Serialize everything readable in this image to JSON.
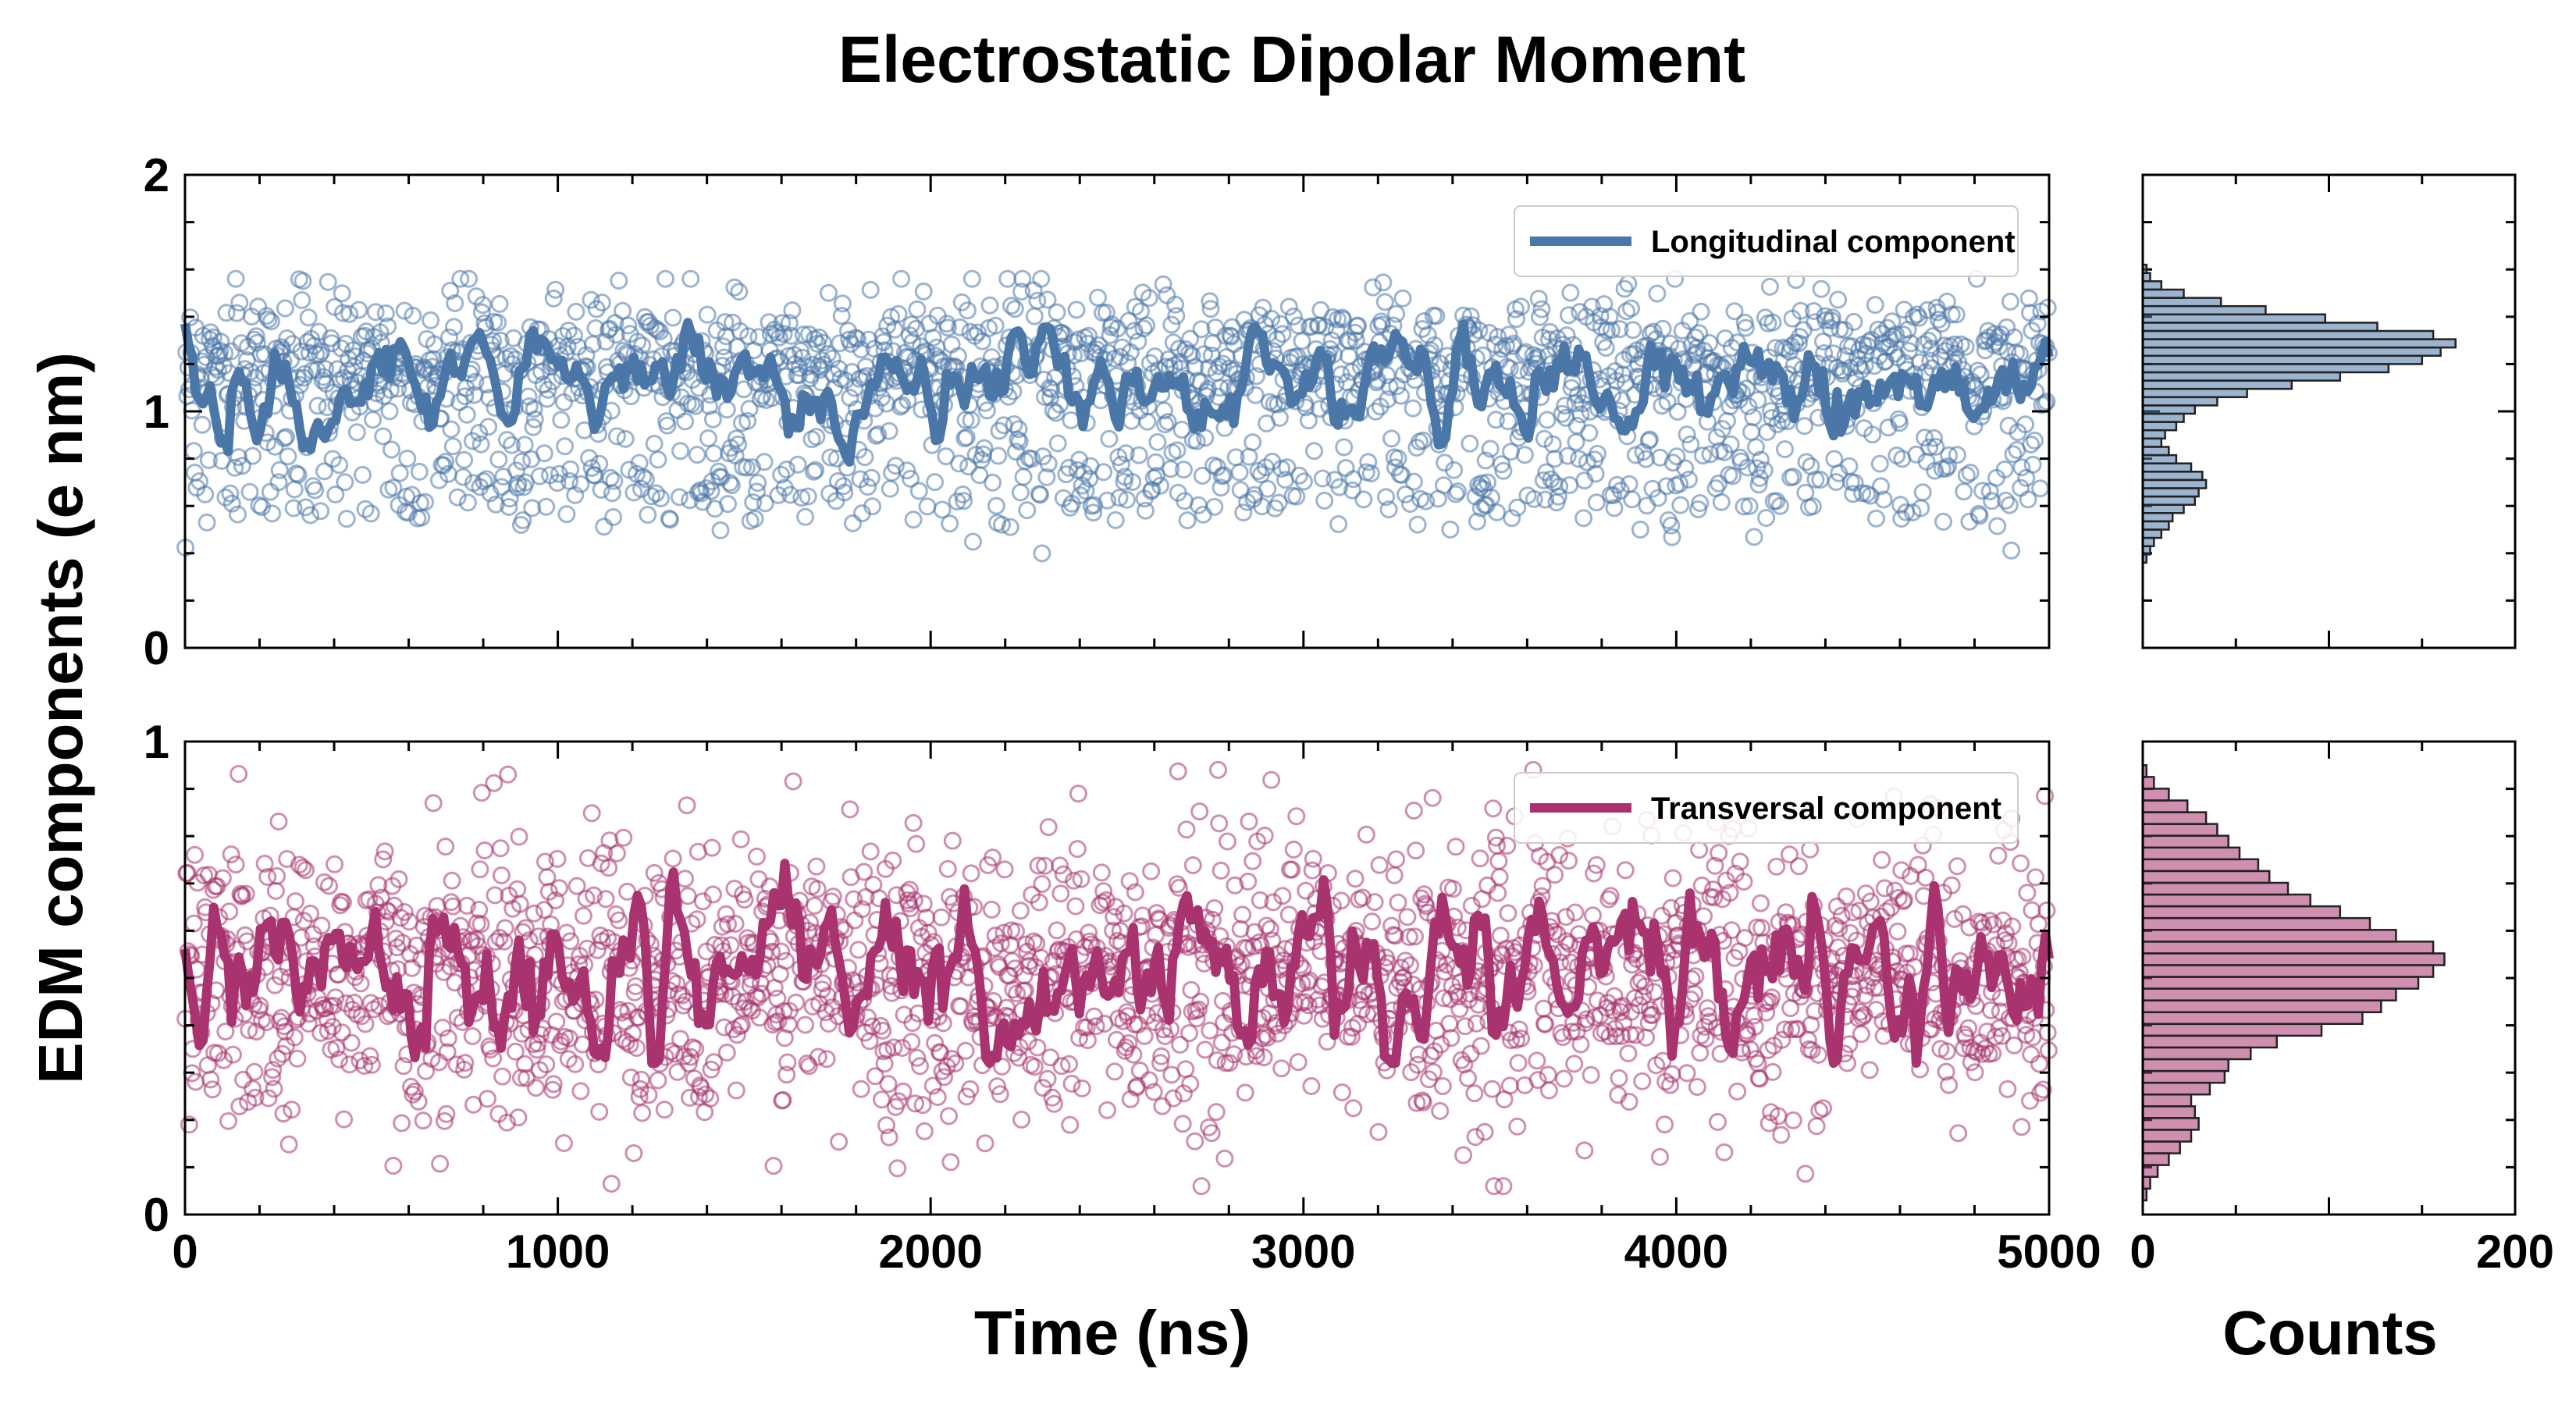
{
  "chart_data": {
    "type": "scatter",
    "title": "Electrostatic Dipolar Moment",
    "ylabel": "EDM components (e nm)",
    "xlabel_time": "Time (ns)",
    "xlabel_hist": "Counts",
    "xlim_time": [
      0,
      5000
    ],
    "xlim_hist": [
      0,
      200
    ],
    "x_ticks_time": [
      "0",
      "1000",
      "2000",
      "3000",
      "4000",
      "5000"
    ],
    "x_ticks_hist": [
      "0",
      "200"
    ],
    "colors": {
      "longitudinal": "#4a77a8",
      "transversal": "#a8336f"
    },
    "panels": [
      {
        "id": "longitudinal",
        "legend": "Longitudinal component",
        "ylim": [
          0,
          2
        ],
        "y_ticks": [
          "0",
          "1",
          "2"
        ],
        "scatter_stats": {
          "n_points": 2000,
          "center": 1.2,
          "spread": 0.15,
          "low_mode": 0.7,
          "min": 0.36,
          "max": 1.56
        },
        "running_mean": {
          "level": 1.12,
          "min": 0.78,
          "max": 1.38
        },
        "histogram": {
          "y_range": [
            0.36,
            1.62
          ],
          "counts": [
            2,
            4,
            6,
            10,
            14,
            16,
            22,
            28,
            30,
            34,
            32,
            26,
            18,
            14,
            10,
            12,
            18,
            22,
            28,
            40,
            56,
            80,
            106,
            132,
            150,
            160,
            168,
            156,
            126,
            98,
            66,
            42,
            22,
            10,
            4,
            2
          ]
        }
      },
      {
        "id": "transversal",
        "legend": "Transversal component",
        "ylim": [
          0,
          1
        ],
        "y_ticks": [
          "0",
          "1"
        ],
        "scatter_stats": {
          "n_points": 2000,
          "center": 0.5,
          "spread": 0.15,
          "min": 0.06,
          "max": 0.94
        },
        "running_mean": {
          "level": 0.5,
          "min": 0.32,
          "max": 0.79
        },
        "histogram": {
          "y_range": [
            0.03,
            0.95
          ],
          "counts": [
            2,
            4,
            8,
            14,
            20,
            26,
            30,
            28,
            26,
            36,
            44,
            46,
            58,
            72,
            96,
            118,
            128,
            136,
            148,
            156,
            162,
            156,
            136,
            122,
            106,
            90,
            78,
            68,
            62,
            52,
            46,
            40,
            34,
            24,
            14,
            6,
            2
          ]
        }
      }
    ]
  }
}
